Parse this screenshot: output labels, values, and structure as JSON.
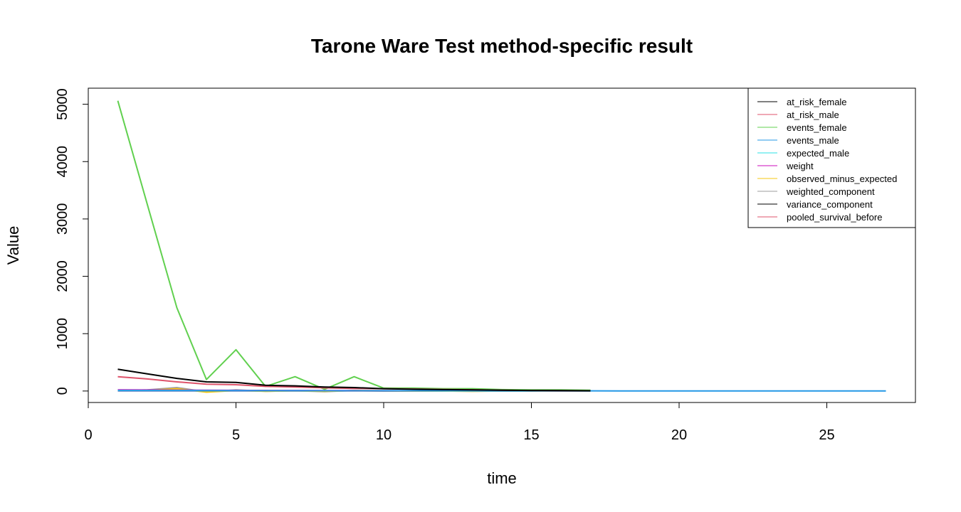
{
  "chart_data": {
    "type": "line",
    "title": "Tarone Ware Test method-specific result",
    "xlabel": "time",
    "ylabel": "Value",
    "xlim": [
      0,
      28
    ],
    "ylim": [
      -200,
      5280
    ],
    "xticks": [
      0,
      5,
      10,
      15,
      20,
      25
    ],
    "yticks": [
      0,
      1000,
      2000,
      3000,
      4000,
      5000
    ],
    "legend_position": "top-right",
    "grid": false,
    "series": [
      {
        "name": "at_risk_female",
        "color": "#000000",
        "x": [
          1,
          2,
          3,
          4,
          5,
          6,
          7,
          8,
          9,
          10,
          11,
          12,
          13,
          14,
          15,
          16,
          17
        ],
        "y": [
          380,
          300,
          220,
          160,
          150,
          100,
          90,
          70,
          60,
          40,
          30,
          25,
          20,
          15,
          10,
          8,
          5
        ]
      },
      {
        "name": "at_risk_male",
        "color": "#DF536B",
        "x": [
          1,
          2,
          3,
          4,
          5,
          6,
          7,
          8,
          9,
          10,
          11,
          12,
          13,
          14,
          15,
          16,
          17
        ],
        "y": [
          250,
          210,
          160,
          120,
          110,
          80,
          70,
          55,
          45,
          40,
          35,
          28,
          22,
          15,
          10,
          6,
          4
        ]
      },
      {
        "name": "events_female",
        "color": "#61D04F",
        "x": [
          1,
          2,
          3,
          4,
          5,
          6,
          7,
          8,
          9,
          10,
          11,
          12,
          13,
          14,
          15,
          16,
          17
        ],
        "y": [
          5060,
          3250,
          1450,
          200,
          720,
          80,
          250,
          30,
          250,
          50,
          50,
          40,
          40,
          25,
          20,
          20,
          15
        ]
      },
      {
        "name": "events_male",
        "color": "#2297E6",
        "x": [
          1,
          2,
          3,
          4,
          5,
          6,
          7,
          8,
          9,
          10,
          11,
          12,
          13,
          14,
          15,
          16,
          17,
          18,
          19,
          20,
          21,
          22,
          23,
          24,
          25,
          26,
          27
        ],
        "y": [
          5,
          5,
          5,
          5,
          5,
          5,
          5,
          5,
          5,
          5,
          5,
          5,
          3,
          3,
          3,
          3,
          3,
          2,
          2,
          2,
          2,
          2,
          2,
          2,
          2,
          2,
          2
        ]
      },
      {
        "name": "expected_male",
        "color": "#28E2E5",
        "x": [
          1,
          2,
          3,
          4,
          5,
          6,
          7,
          8,
          9,
          10,
          11,
          12,
          13,
          14,
          15,
          16,
          17
        ],
        "y": [
          10,
          10,
          10,
          8,
          8,
          6,
          6,
          5,
          5,
          4,
          4,
          3,
          3,
          2,
          2,
          2,
          1
        ]
      },
      {
        "name": "weight",
        "color": "#CD0BBC",
        "x": [
          1,
          2,
          3,
          4,
          5,
          6,
          7,
          8,
          9,
          10,
          11,
          12,
          13,
          14,
          15,
          16,
          17
        ],
        "y": [
          20,
          18,
          16,
          13,
          12,
          10,
          9,
          8,
          7,
          6,
          5,
          4,
          4,
          3,
          3,
          2,
          2
        ]
      },
      {
        "name": "observed_minus_expected",
        "color": "#F5C710",
        "x": [
          1,
          2,
          3,
          4,
          5,
          6,
          7,
          8,
          9,
          10,
          11,
          12,
          13,
          14,
          15,
          16,
          17
        ],
        "y": [
          5,
          10,
          40,
          -20,
          10,
          -5,
          5,
          -5,
          10,
          5,
          2,
          0,
          -5,
          0,
          0,
          0,
          0
        ]
      },
      {
        "name": "weighted_component",
        "color": "#9E9E9E",
        "x": [
          1,
          2,
          3,
          4,
          5,
          6,
          7,
          8,
          9,
          10,
          11,
          12,
          13,
          14,
          15,
          16,
          17
        ],
        "y": [
          5,
          20,
          60,
          -15,
          20,
          -5,
          5,
          -10,
          10,
          5,
          2,
          0,
          -5,
          0,
          0,
          0,
          0
        ]
      },
      {
        "name": "variance_component",
        "color": "#000000",
        "x": [
          1,
          2,
          3,
          4,
          5,
          6,
          7,
          8,
          9,
          10,
          11,
          12,
          13,
          14,
          15,
          16,
          17
        ],
        "y": [
          15,
          14,
          12,
          10,
          9,
          7,
          6,
          5,
          4,
          3,
          3,
          2,
          2,
          1,
          1,
          1,
          1
        ]
      },
      {
        "name": "pooled_survival_before",
        "color": "#DF536B",
        "x": [
          1,
          2,
          3,
          4,
          5,
          6,
          7,
          8,
          9,
          10,
          11,
          12,
          13,
          14,
          15,
          16,
          17
        ],
        "y": [
          1,
          1,
          1,
          1,
          1,
          1,
          1,
          1,
          1,
          1,
          1,
          1,
          1,
          1,
          1,
          1,
          1
        ]
      }
    ]
  }
}
